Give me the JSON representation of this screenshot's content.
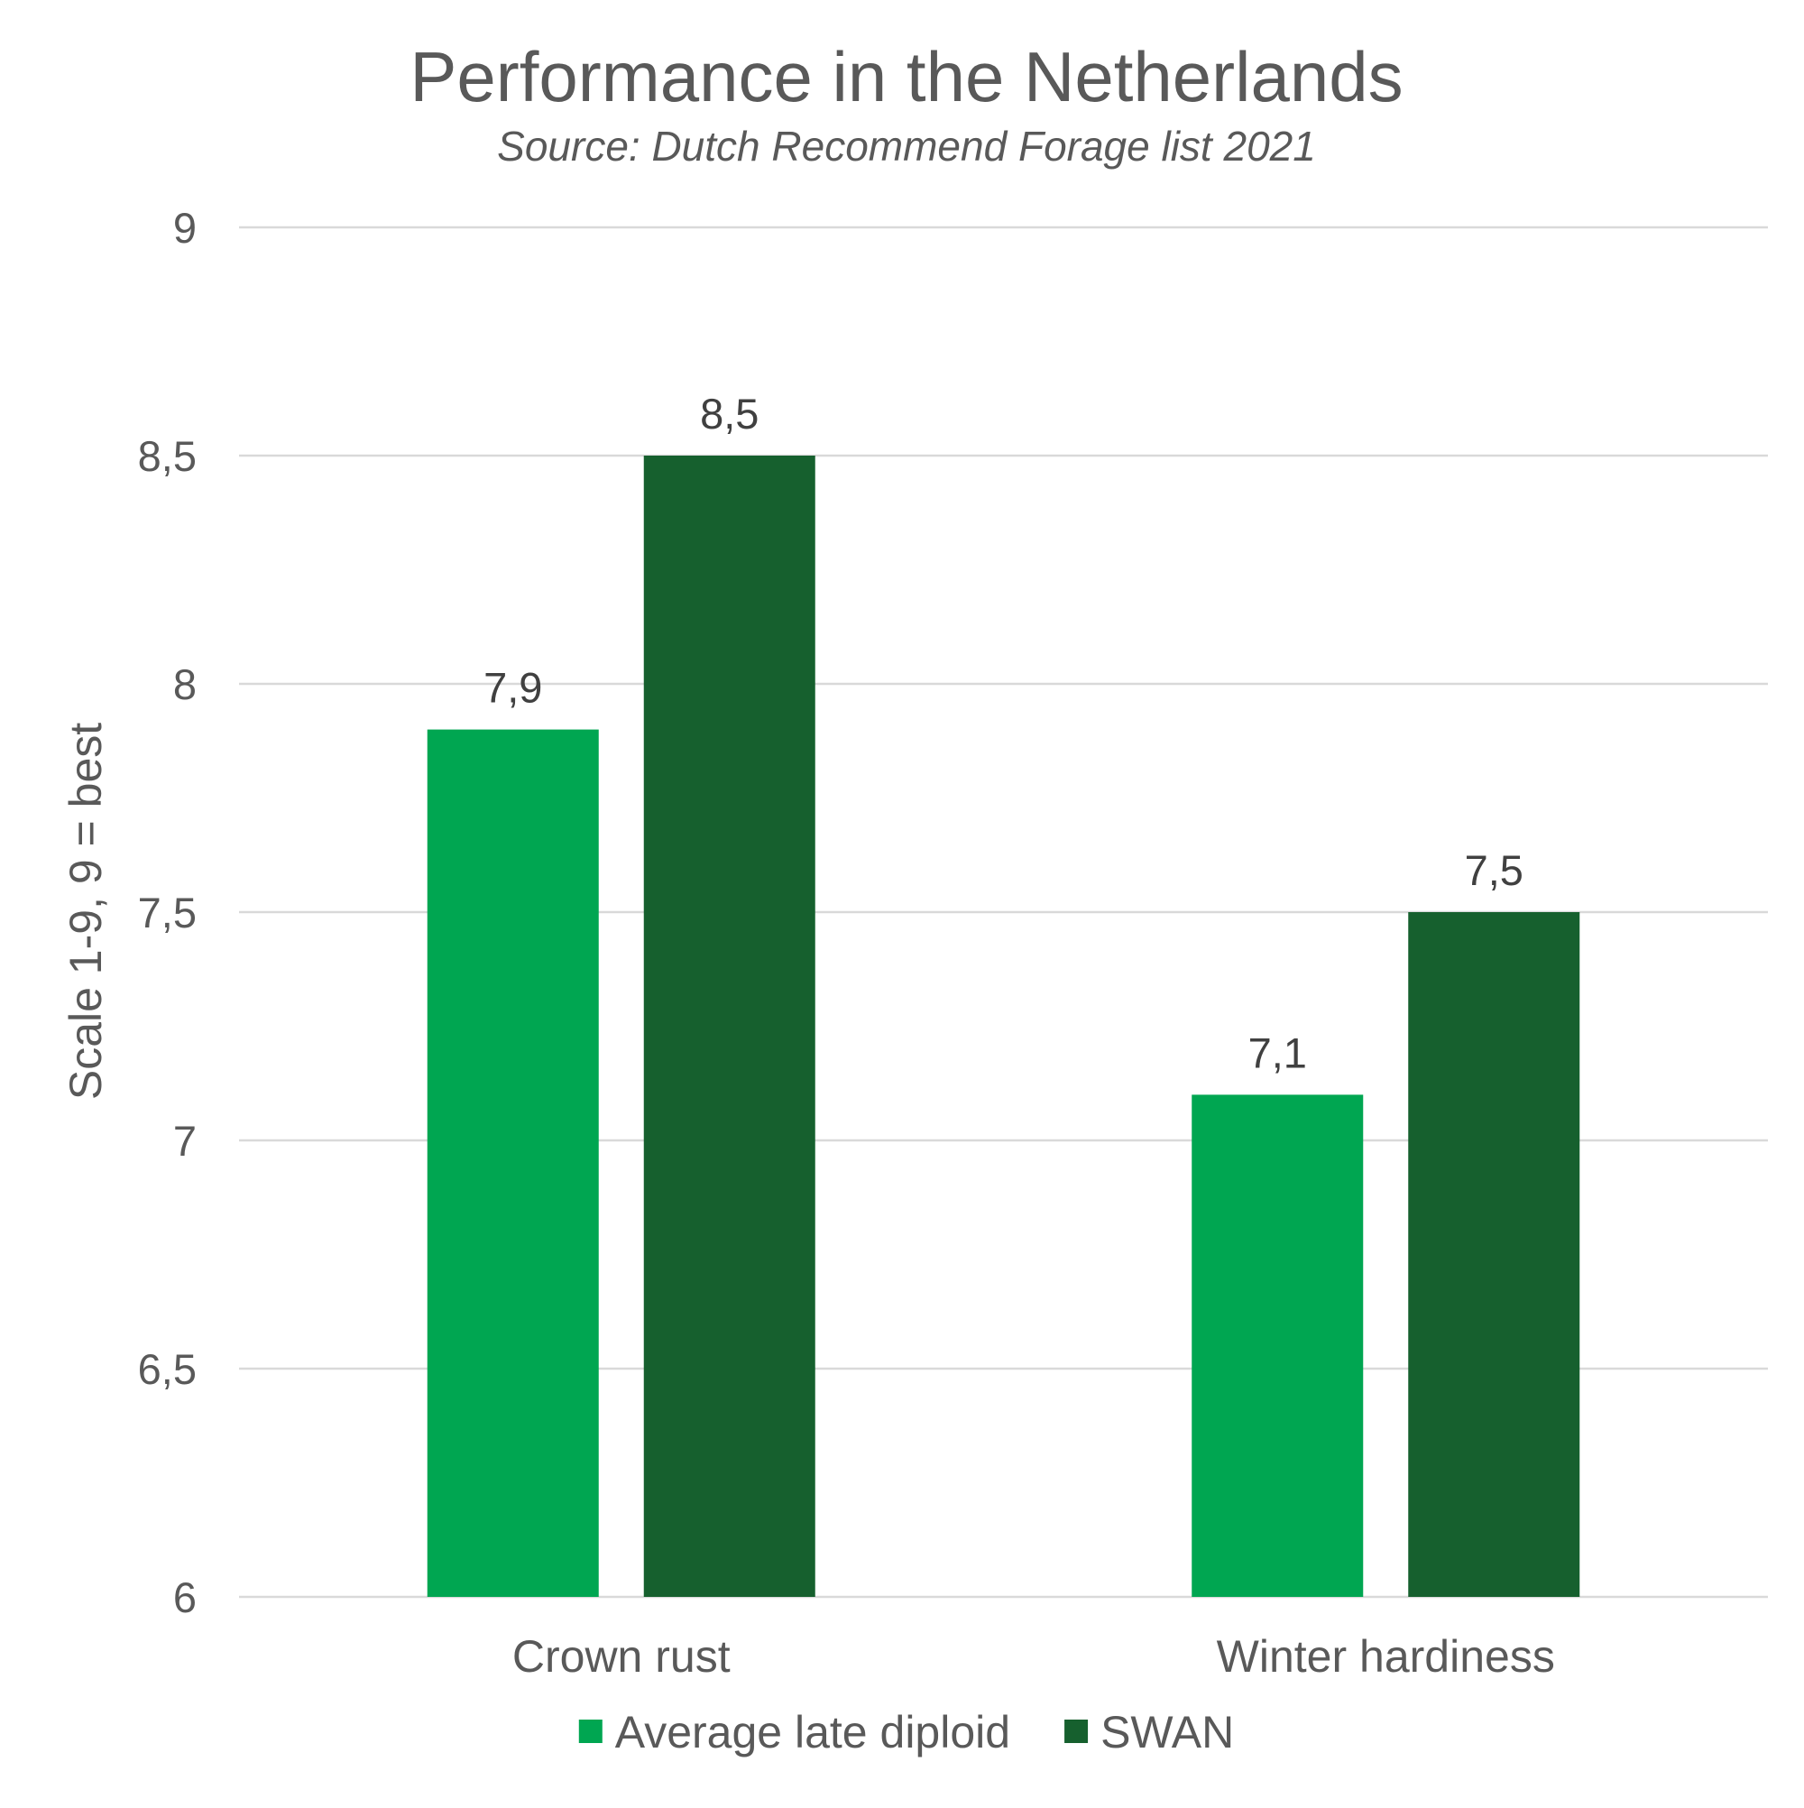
{
  "chart_data": {
    "type": "bar",
    "title": "Performance in the Netherlands",
    "subtitle": "Source: Dutch Recommend Forage list 2021",
    "xlabel": "",
    "ylabel": "Scale 1-9, 9 = best",
    "categories": [
      "Crown rust",
      "Winter hardiness"
    ],
    "series": [
      {
        "name": "Average late diploid",
        "values": [
          7.9,
          7.1
        ],
        "labels": [
          "7,9",
          "7,1"
        ],
        "color": "#00A651"
      },
      {
        "name": "SWAN",
        "values": [
          8.5,
          7.5
        ],
        "labels": [
          "8,5",
          "7,5"
        ],
        "color": "#16602E"
      }
    ],
    "ylim": [
      6,
      9
    ],
    "yticks": [
      6,
      6.5,
      7,
      7.5,
      8,
      8.5,
      9
    ],
    "ytick_labels": [
      "6",
      "6,5",
      "7",
      "7,5",
      "8",
      "8,5",
      "9"
    ],
    "grid": true,
    "legend_position": "bottom"
  },
  "colors": {
    "title_text": "#595959",
    "axis_text": "#595959",
    "data_label_text": "#404040",
    "gridline": "#D9D9D9"
  }
}
